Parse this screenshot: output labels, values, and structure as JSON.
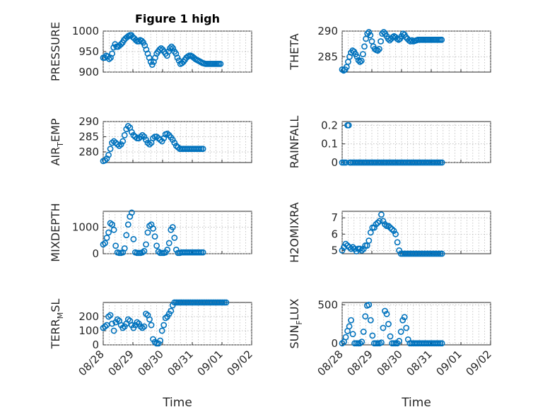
{
  "chart_data": [
    {
      "type": "scatter",
      "id": "pressure",
      "title": "Figure 1 high",
      "ylabel": "PRESSURE",
      "ylabel_sub": "",
      "ylim": [
        900,
        1000
      ],
      "yticks": [
        "1000",
        "950",
        "900"
      ],
      "ytick_values": [
        1000,
        950,
        900
      ],
      "xlim": [
        0,
        5
      ],
      "grid": true,
      "x": [
        0.0,
        0.05,
        0.1,
        0.15,
        0.2,
        0.25,
        0.3,
        0.35,
        0.4,
        0.45,
        0.5,
        0.55,
        0.6,
        0.65,
        0.7,
        0.75,
        0.8,
        0.85,
        0.9,
        0.95,
        1.0,
        1.05,
        1.1,
        1.15,
        1.2,
        1.25,
        1.3,
        1.35,
        1.4,
        1.45,
        1.5,
        1.55,
        1.6,
        1.65,
        1.7,
        1.75,
        1.8,
        1.85,
        1.9,
        1.95,
        2.0,
        2.05,
        2.1,
        2.15,
        2.2,
        2.25,
        2.3,
        2.35,
        2.4,
        2.45,
        2.5,
        2.55,
        2.6,
        2.65,
        2.7,
        2.75,
        2.8,
        2.85,
        2.9,
        2.95,
        3.0,
        3.05,
        3.1,
        3.15,
        3.2,
        3.25,
        3.3,
        3.35,
        3.4,
        3.45,
        3.5,
        3.55,
        3.6,
        3.65,
        3.7,
        3.75,
        3.8,
        3.85,
        3.9,
        3.95
      ],
      "y": [
        935,
        935,
        940,
        938,
        932,
        935,
        945,
        960,
        968,
        962,
        962,
        965,
        968,
        972,
        978,
        982,
        985,
        988,
        990,
        990,
        985,
        982,
        978,
        975,
        975,
        978,
        976,
        972,
        965,
        955,
        945,
        935,
        925,
        918,
        925,
        935,
        945,
        950,
        955,
        958,
        955,
        950,
        945,
        940,
        950,
        958,
        962,
        958,
        950,
        945,
        935,
        928,
        920,
        922,
        925,
        930,
        935,
        938,
        940,
        940,
        938,
        935,
        932,
        930,
        928,
        926,
        924,
        922,
        921,
        920,
        920,
        920,
        920,
        920,
        920,
        920,
        920,
        920,
        920,
        920
      ]
    },
    {
      "type": "scatter",
      "id": "theta",
      "title": "",
      "ylabel": "THETA",
      "ylabel_sub": "",
      "ylim": [
        282,
        290
      ],
      "yticks": [
        "290",
        "285"
      ],
      "ytick_values": [
        290,
        285
      ],
      "xlim": [
        0,
        5
      ],
      "grid": true,
      "x": [
        0.0,
        0.05,
        0.1,
        0.15,
        0.2,
        0.25,
        0.3,
        0.35,
        0.4,
        0.45,
        0.5,
        0.55,
        0.6,
        0.65,
        0.7,
        0.75,
        0.8,
        0.85,
        0.9,
        0.95,
        1.0,
        1.05,
        1.1,
        1.15,
        1.2,
        1.25,
        1.3,
        1.35,
        1.4,
        1.45,
        1.5,
        1.55,
        1.6,
        1.65,
        1.7,
        1.75,
        1.8,
        1.85,
        1.9,
        1.95,
        2.0,
        2.05,
        2.1,
        2.15,
        2.2,
        2.25,
        2.3,
        2.35,
        2.4,
        2.45,
        2.5,
        2.55,
        2.6,
        2.65,
        2.7,
        2.75,
        2.8,
        2.85,
        2.9,
        2.95,
        3.0,
        3.05,
        3.1,
        3.15,
        3.2,
        3.25,
        3.3,
        3.35
      ],
      "y": [
        282.5,
        282.3,
        282.5,
        283.0,
        284.0,
        285.0,
        285.8,
        286.2,
        286.0,
        285.5,
        285.0,
        284.3,
        284.0,
        284.2,
        285.5,
        287.0,
        288.5,
        289.5,
        289.8,
        289.2,
        288.0,
        287.0,
        286.5,
        286.3,
        286.2,
        286.5,
        288.0,
        289.5,
        289.8,
        289.5,
        289.0,
        288.5,
        288.2,
        288.5,
        288.8,
        289.0,
        288.8,
        288.5,
        288.3,
        288.5,
        289.0,
        289.5,
        289.3,
        288.8,
        288.5,
        288.2,
        288.0,
        288.2,
        288.0,
        288.1,
        288.2,
        288.3,
        288.3,
        288.3,
        288.3,
        288.3,
        288.3,
        288.3,
        288.3,
        288.3,
        288.3,
        288.3,
        288.3,
        288.3,
        288.3,
        288.3,
        288.3,
        288.3
      ]
    },
    {
      "type": "scatter",
      "id": "air_temp",
      "title": "",
      "ylabel": "AIR",
      "ylabel_sub": "T",
      "ylabel_rest": "EMP",
      "ylim": [
        276.5,
        290
      ],
      "yticks": [
        "290",
        "285",
        "280"
      ],
      "ytick_values": [
        290,
        285,
        280
      ],
      "xlim": [
        0,
        5
      ],
      "grid": true,
      "x": [
        0.0,
        0.06,
        0.12,
        0.18,
        0.24,
        0.3,
        0.36,
        0.42,
        0.48,
        0.54,
        0.6,
        0.66,
        0.72,
        0.78,
        0.84,
        0.9,
        0.96,
        1.02,
        1.08,
        1.14,
        1.2,
        1.26,
        1.32,
        1.38,
        1.44,
        1.5,
        1.56,
        1.62,
        1.68,
        1.74,
        1.8,
        1.86,
        1.92,
        1.98,
        2.04,
        2.1,
        2.16,
        2.22,
        2.28,
        2.34,
        2.4,
        2.46,
        2.52,
        2.58,
        2.64,
        2.7,
        2.76,
        2.82,
        2.88,
        2.94,
        3.0,
        3.06,
        3.12,
        3.18,
        3.24,
        3.3,
        3.36
      ],
      "y": [
        277.0,
        277.2,
        277.8,
        279.0,
        281.0,
        283.0,
        283.5,
        283.0,
        282.5,
        282.0,
        282.5,
        283.5,
        285.5,
        287.5,
        288.5,
        288.0,
        286.5,
        285.5,
        285.0,
        284.5,
        284.5,
        285.0,
        285.5,
        285.0,
        284.0,
        283.0,
        282.5,
        283.0,
        284.5,
        285.0,
        285.0,
        284.5,
        284.0,
        283.5,
        284.5,
        285.8,
        286.0,
        285.5,
        284.8,
        284.0,
        283.0,
        282.0,
        281.5,
        281.0,
        281.0,
        281.0,
        281.0,
        281.0,
        281.0,
        281.0,
        281.0,
        281.0,
        281.0,
        281.0,
        281.0,
        281.0,
        281.0
      ]
    },
    {
      "type": "scatter",
      "id": "rainfall",
      "title": "",
      "ylabel": "RAINFALL",
      "ylabel_sub": "",
      "ylim": [
        0,
        0.22
      ],
      "yticks": [
        "0.2",
        "0.1",
        "0"
      ],
      "ytick_values": [
        0.2,
        0.1,
        0
      ],
      "xlim": [
        0,
        5
      ],
      "grid": true,
      "x": [
        0.0,
        0.06,
        0.12,
        0.18,
        0.22,
        0.26,
        0.3,
        0.36,
        0.42,
        0.48,
        0.54,
        0.6,
        0.66,
        0.72,
        0.78,
        0.84,
        0.9,
        0.96,
        1.02,
        1.08,
        1.14,
        1.2,
        1.26,
        1.32,
        1.38,
        1.44,
        1.5,
        1.56,
        1.62,
        1.68,
        1.74,
        1.8,
        1.86,
        1.92,
        1.98,
        2.04,
        2.1,
        2.16,
        2.22,
        2.28,
        2.34,
        2.4,
        2.46,
        2.52,
        2.58,
        2.64,
        2.7,
        2.76,
        2.82,
        2.88,
        2.94,
        3.0,
        3.06,
        3.12,
        3.18,
        3.24,
        3.3,
        3.36
      ],
      "y": [
        0,
        0,
        0,
        0.2,
        0.2,
        0,
        0,
        0,
        0,
        0,
        0,
        0,
        0,
        0,
        0,
        0,
        0,
        0,
        0,
        0,
        0,
        0,
        0,
        0,
        0,
        0,
        0,
        0,
        0,
        0,
        0,
        0,
        0,
        0,
        0,
        0,
        0,
        0,
        0,
        0,
        0,
        0,
        0,
        0,
        0,
        0,
        0,
        0,
        0,
        0,
        0,
        0,
        0,
        0,
        0,
        0,
        0,
        0
      ]
    },
    {
      "type": "scatter",
      "id": "mixdepth",
      "title": "",
      "ylabel": "MIXDEPTH",
      "ylabel_sub": "",
      "ylim": [
        0,
        1600
      ],
      "yticks": [
        "1000",
        "0"
      ],
      "ytick_values": [
        1000,
        0
      ],
      "xlim": [
        0,
        5
      ],
      "grid": true,
      "x": [
        0.0,
        0.06,
        0.12,
        0.18,
        0.24,
        0.3,
        0.36,
        0.42,
        0.48,
        0.54,
        0.6,
        0.66,
        0.72,
        0.78,
        0.84,
        0.9,
        0.96,
        1.02,
        1.08,
        1.14,
        1.2,
        1.26,
        1.32,
        1.38,
        1.44,
        1.5,
        1.56,
        1.62,
        1.68,
        1.74,
        1.8,
        1.86,
        1.92,
        1.98,
        2.04,
        2.1,
        2.16,
        2.22,
        2.28,
        2.34,
        2.4,
        2.46,
        2.52,
        2.58,
        2.64,
        2.7,
        2.76,
        2.82,
        2.88,
        2.94,
        3.0,
        3.06,
        3.12,
        3.18,
        3.24,
        3.3,
        3.36
      ],
      "y": [
        350,
        400,
        600,
        800,
        1150,
        1100,
        900,
        300,
        50,
        30,
        30,
        50,
        200,
        700,
        1100,
        1400,
        1550,
        550,
        50,
        30,
        30,
        30,
        50,
        100,
        350,
        800,
        1050,
        1100,
        950,
        650,
        300,
        80,
        30,
        30,
        30,
        50,
        150,
        400,
        900,
        1000,
        600,
        150,
        30,
        30,
        50,
        50,
        50,
        50,
        50,
        50,
        50,
        50,
        50,
        50,
        50,
        50,
        50
      ]
    },
    {
      "type": "scatter",
      "id": "h2omixra",
      "title": "",
      "ylabel": "H2OMIXRA",
      "ylabel_sub": "",
      "ylim": [
        4.8,
        7.4
      ],
      "yticks": [
        "7",
        "6",
        "5"
      ],
      "ytick_values": [
        7,
        6,
        5
      ],
      "xlim": [
        0,
        5
      ],
      "grid": true,
      "x": [
        0.0,
        0.06,
        0.12,
        0.18,
        0.24,
        0.3,
        0.36,
        0.42,
        0.48,
        0.54,
        0.6,
        0.66,
        0.72,
        0.78,
        0.84,
        0.9,
        0.96,
        1.02,
        1.08,
        1.14,
        1.2,
        1.26,
        1.32,
        1.38,
        1.44,
        1.5,
        1.56,
        1.62,
        1.68,
        1.74,
        1.8,
        1.86,
        1.92,
        1.98,
        2.04,
        2.1,
        2.16,
        2.22,
        2.28,
        2.34,
        2.4,
        2.46,
        2.52,
        2.58,
        2.64,
        2.7,
        2.76,
        2.82,
        2.88,
        2.94,
        3.0,
        3.06,
        3.12,
        3.18,
        3.24,
        3.3,
        3.36
      ],
      "y": [
        5.0,
        5.2,
        5.4,
        5.3,
        5.2,
        5.1,
        5.2,
        5.1,
        4.95,
        5.1,
        5.1,
        5.0,
        5.1,
        5.3,
        5.3,
        5.6,
        6.1,
        6.4,
        6.4,
        6.6,
        6.7,
        6.8,
        7.2,
        6.8,
        6.6,
        6.5,
        6.5,
        6.4,
        6.3,
        6.2,
        6.0,
        5.5,
        5.0,
        4.8,
        4.8,
        4.8,
        4.8,
        4.8,
        4.8,
        4.8,
        4.8,
        4.8,
        4.8,
        4.8,
        4.8,
        4.8,
        4.8,
        4.8,
        4.8,
        4.8,
        4.8,
        4.8,
        4.8,
        4.8,
        4.8,
        4.8,
        4.8
      ]
    },
    {
      "type": "scatter",
      "id": "terrmsl",
      "title": "",
      "ylabel": "TERR",
      "ylabel_sub": "M",
      "ylabel_rest": "SL",
      "ylim": [
        0,
        300
      ],
      "yticks": [
        "200",
        "100",
        "0"
      ],
      "ytick_values": [
        200,
        100,
        0
      ],
      "xlim": [
        0,
        5
      ],
      "xticks": [
        "08/28",
        "08/29",
        "08/30",
        "08/31",
        "09/01",
        "09/02"
      ],
      "xtick_values": [
        0,
        1,
        2,
        3,
        4,
        5
      ],
      "xlabel": "Time",
      "grid": true,
      "x": [
        0.0,
        0.06,
        0.12,
        0.18,
        0.24,
        0.3,
        0.36,
        0.42,
        0.48,
        0.54,
        0.6,
        0.66,
        0.72,
        0.78,
        0.84,
        0.9,
        0.96,
        1.02,
        1.08,
        1.14,
        1.2,
        1.26,
        1.32,
        1.38,
        1.44,
        1.5,
        1.56,
        1.62,
        1.68,
        1.74,
        1.8,
        1.86,
        1.92,
        1.98,
        2.04,
        2.1,
        2.16,
        2.22,
        2.28,
        2.34,
        2.4,
        2.46,
        2.52,
        2.58,
        2.64,
        2.7,
        2.76,
        2.82,
        2.88,
        2.94,
        3.0,
        3.06,
        3.12,
        3.18,
        3.24,
        3.3,
        3.36,
        3.42,
        3.48,
        3.54,
        3.6,
        3.66,
        3.72,
        3.78,
        3.84,
        3.9,
        3.96,
        4.02,
        4.08,
        4.14
      ],
      "y": [
        120,
        130,
        140,
        200,
        210,
        150,
        100,
        160,
        180,
        170,
        140,
        120,
        130,
        150,
        180,
        170,
        140,
        120,
        140,
        160,
        150,
        130,
        120,
        130,
        220,
        210,
        180,
        140,
        40,
        20,
        10,
        10,
        30,
        100,
        140,
        190,
        200,
        220,
        240,
        280,
        300,
        300,
        300,
        300,
        300,
        300,
        300,
        300,
        300,
        300,
        300,
        300,
        300,
        300,
        300,
        300,
        300,
        300,
        300,
        300,
        300,
        300,
        300,
        300,
        300,
        300,
        300,
        300,
        300,
        300
      ]
    },
    {
      "type": "scatter",
      "id": "sunflux",
      "title": "",
      "ylabel": "SUN",
      "ylabel_sub": "F",
      "ylabel_rest": "LUX",
      "ylim": [
        -20,
        530
      ],
      "yticks": [
        "500",
        "0"
      ],
      "ytick_values": [
        500,
        0
      ],
      "xlim": [
        0,
        5
      ],
      "xticks": [
        "08/28",
        "08/29",
        "08/30",
        "08/31",
        "09/01",
        "09/02"
      ],
      "xtick_values": [
        0,
        1,
        2,
        3,
        4,
        5
      ],
      "xlabel": "Time",
      "grid": true,
      "x": [
        0.0,
        0.06,
        0.12,
        0.18,
        0.24,
        0.3,
        0.36,
        0.42,
        0.48,
        0.54,
        0.6,
        0.66,
        0.72,
        0.78,
        0.84,
        0.9,
        0.96,
        1.02,
        1.08,
        1.14,
        1.2,
        1.26,
        1.32,
        1.38,
        1.44,
        1.5,
        1.56,
        1.62,
        1.68,
        1.74,
        1.8,
        1.86,
        1.92,
        1.98,
        2.04,
        2.1,
        2.16,
        2.22,
        2.28,
        2.34,
        2.4,
        2.46,
        2.52,
        2.58,
        2.64,
        2.7,
        2.76,
        2.82,
        2.88,
        2.94,
        3.0,
        3.06,
        3.12,
        3.18,
        3.24,
        3.3,
        3.36
      ],
      "y": [
        0,
        20,
        80,
        160,
        220,
        300,
        120,
        0,
        0,
        0,
        0,
        20,
        150,
        350,
        490,
        500,
        300,
        100,
        0,
        0,
        0,
        0,
        10,
        200,
        420,
        380,
        250,
        90,
        0,
        0,
        0,
        0,
        30,
        150,
        300,
        340,
        200,
        50,
        0,
        0,
        0,
        0,
        0,
        0,
        0,
        0,
        0,
        0,
        0,
        0,
        0,
        0,
        0,
        0,
        0,
        0,
        0
      ]
    }
  ]
}
